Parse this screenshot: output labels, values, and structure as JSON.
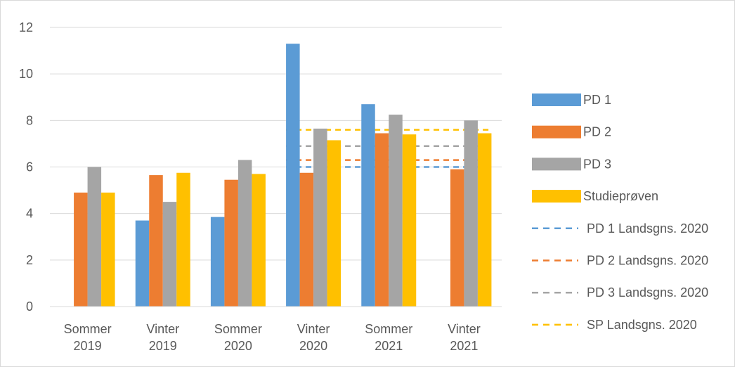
{
  "chart_data": {
    "type": "bar",
    "categories": [
      [
        "Sommer",
        "2019"
      ],
      [
        "Vinter",
        "2019"
      ],
      [
        "Sommer",
        "2020"
      ],
      [
        "Vinter",
        "2020"
      ],
      [
        "Sommer",
        "2021"
      ],
      [
        "Vinter",
        "2021"
      ]
    ],
    "series": [
      {
        "name": "PD 1",
        "color": "#5b9bd5",
        "values": [
          null,
          3.7,
          3.85,
          11.3,
          8.7,
          null
        ]
      },
      {
        "name": "PD 2",
        "color": "#ed7d31",
        "values": [
          4.9,
          5.65,
          5.45,
          5.75,
          7.45,
          5.9
        ]
      },
      {
        "name": "PD 3",
        "color": "#a5a5a5",
        "values": [
          6.0,
          4.5,
          6.3,
          7.65,
          8.25,
          8.0
        ]
      },
      {
        "name": "Studieprøven",
        "color": "#ffc000",
        "values": [
          4.9,
          5.75,
          5.7,
          7.15,
          7.4,
          7.45
        ]
      }
    ],
    "reference_lines": [
      {
        "name": "PD 1 Landsgns. 2020",
        "color": "#5b9bd5",
        "value": 6.0,
        "from_category": 3,
        "to_category": 5
      },
      {
        "name": "PD 2 Landsgns. 2020",
        "color": "#ed7d31",
        "value": 6.3,
        "from_category": 3,
        "to_category": 5
      },
      {
        "name": "PD 3 Landsgns. 2020",
        "color": "#a5a5a5",
        "value": 6.9,
        "from_category": 3,
        "to_category": 5
      },
      {
        "name": "SP Landsgns. 2020",
        "color": "#ffc000",
        "value": 7.6,
        "from_category": 3,
        "to_category": 5
      }
    ],
    "ylim": [
      0,
      12
    ],
    "yticks": [
      0,
      2,
      4,
      6,
      8,
      10,
      12
    ],
    "grid": true,
    "legend_position": "right",
    "gridline_color": "#d9d9d9"
  }
}
